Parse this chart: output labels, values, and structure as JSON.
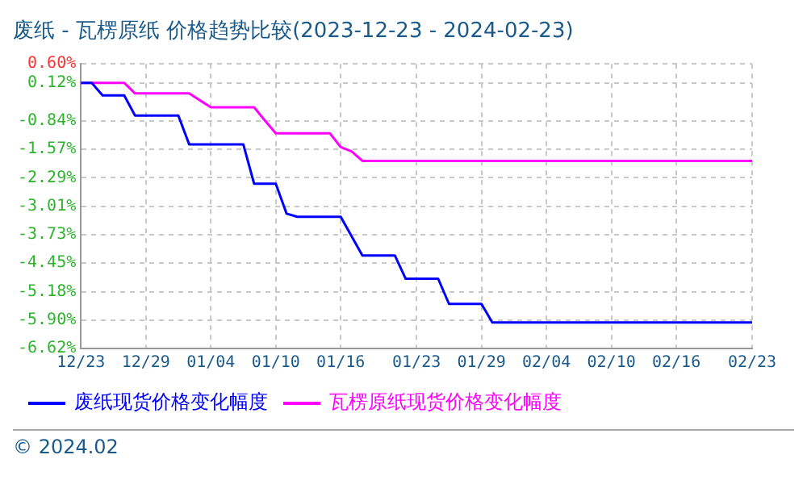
{
  "chart_data": {
    "type": "line",
    "title": "废纸 - 瓦楞原纸 价格趋势比较(2023-12-23 - 2024-02-23)",
    "series": [
      {
        "name": "废纸现货价格变化幅度",
        "color": "#0000ff",
        "x": [
          "2023-12-23",
          "2023-12-24",
          "2023-12-25",
          "2023-12-27",
          "2023-12-28",
          "2024-01-01",
          "2024-01-02",
          "2024-01-07",
          "2024-01-08",
          "2024-01-10",
          "2024-01-11",
          "2024-01-12",
          "2024-01-16",
          "2024-01-18",
          "2024-01-21",
          "2024-01-22",
          "2024-01-25",
          "2024-01-26",
          "2024-01-29",
          "2024-01-30",
          "2024-02-23"
        ],
        "values": [
          0.12,
          0.12,
          -0.2,
          -0.2,
          -0.71,
          -0.71,
          -1.44,
          -1.44,
          -2.44,
          -2.44,
          -3.2,
          -3.28,
          -3.28,
          -4.26,
          -4.26,
          -4.85,
          -4.85,
          -5.49,
          -5.49,
          -5.96,
          -5.96
        ]
      },
      {
        "name": "瓦楞原纸现货价格变化幅度",
        "color": "#ff00ff",
        "x": [
          "2023-12-23",
          "2023-12-27",
          "2023-12-28",
          "2024-01-02",
          "2024-01-04",
          "2024-01-08",
          "2024-01-09",
          "2024-01-10",
          "2024-01-15",
          "2024-01-16",
          "2024-01-17",
          "2024-01-18",
          "2024-02-23"
        ],
        "values": [
          0.12,
          0.12,
          -0.15,
          -0.15,
          -0.5,
          -0.5,
          -0.84,
          -1.16,
          -1.16,
          -1.51,
          -1.62,
          -1.86,
          -1.86
        ]
      }
    ],
    "xlim": [
      "2023-12-23",
      "2024-02-23"
    ],
    "xticks": [
      {
        "value": "2023-12-23",
        "label": "12/23"
      },
      {
        "value": "2023-12-29",
        "label": "12/29"
      },
      {
        "value": "2024-01-04",
        "label": "01/04"
      },
      {
        "value": "2024-01-10",
        "label": "01/10"
      },
      {
        "value": "2024-01-16",
        "label": "01/16"
      },
      {
        "value": "2024-01-23",
        "label": "01/23"
      },
      {
        "value": "2024-01-29",
        "label": "01/29"
      },
      {
        "value": "2024-02-04",
        "label": "02/04"
      },
      {
        "value": "2024-02-10",
        "label": "02/10"
      },
      {
        "value": "2024-02-16",
        "label": "02/16"
      },
      {
        "value": "2024-02-23",
        "label": "02/23"
      }
    ],
    "ylim": [
      -6.62,
      0.6
    ],
    "yticks": [
      {
        "value": 0.6,
        "label": "0.60%"
      },
      {
        "value": 0.12,
        "label": "0.12%"
      },
      {
        "value": -0.84,
        "label": "-0.84%"
      },
      {
        "value": -1.57,
        "label": "-1.57%"
      },
      {
        "value": -2.29,
        "label": "-2.29%"
      },
      {
        "value": -3.01,
        "label": "-3.01%"
      },
      {
        "value": -3.73,
        "label": "-3.73%"
      },
      {
        "value": -4.45,
        "label": "-4.45%"
      },
      {
        "value": -5.18,
        "label": "-5.18%"
      },
      {
        "value": -5.9,
        "label": "-5.90%"
      },
      {
        "value": -6.62,
        "label": "-6.62%"
      }
    ],
    "grid": true,
    "legend": "bottom",
    "marker": "none",
    "line_style": "solid",
    "annotations": [
      "© 2024.02"
    ]
  }
}
